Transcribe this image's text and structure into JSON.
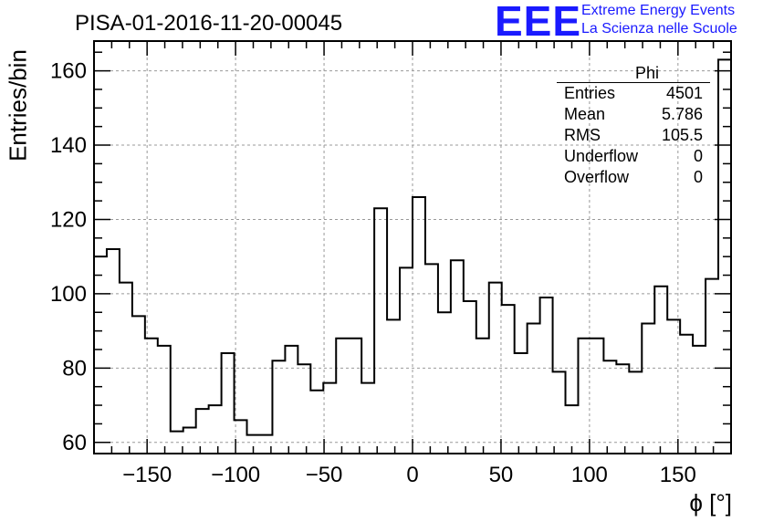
{
  "title": "PISA-01-2016-11-20-00045",
  "logo": {
    "letters": "EEE",
    "line1": "Extreme Energy Events",
    "line2": "La Scienza nelle Scuole"
  },
  "stats": {
    "name": "Phi",
    "rows": [
      {
        "label": "Entries",
        "value": "4501"
      },
      {
        "label": "Mean",
        "value": "5.786"
      },
      {
        "label": "RMS",
        "value": "105.5"
      },
      {
        "label": "Underflow",
        "value": "0"
      },
      {
        "label": "Overflow",
        "value": "0"
      }
    ]
  },
  "chart_data": {
    "type": "bar",
    "style": "step-histogram",
    "title": "PISA-01-2016-11-20-00045",
    "xlabel": "ϕ [°]",
    "ylabel": "Entries/bin",
    "xlim": [
      -180,
      180
    ],
    "ylim": [
      57,
      168
    ],
    "bin_width": 7.2,
    "grid": true,
    "xticks": [
      -150,
      -100,
      -50,
      0,
      50,
      100,
      150
    ],
    "xtick_labels": [
      "−150",
      "−100",
      "−50",
      "0",
      "50",
      "100",
      "150"
    ],
    "yticks": [
      60,
      80,
      100,
      120,
      140,
      160
    ],
    "ytick_labels": [
      "60",
      "80",
      "100",
      "120",
      "140",
      "160"
    ],
    "values": [
      110,
      112,
      103,
      94,
      88,
      86,
      63,
      64,
      69,
      70,
      84,
      66,
      62,
      62,
      82,
      86,
      81,
      74,
      76,
      88,
      88,
      76,
      123,
      93,
      107,
      126,
      108,
      95,
      109,
      98,
      88,
      103,
      97,
      84,
      92,
      99,
      79,
      70,
      88,
      88,
      82,
      81,
      79,
      92,
      102,
      93,
      89,
      86,
      104,
      163
    ]
  }
}
